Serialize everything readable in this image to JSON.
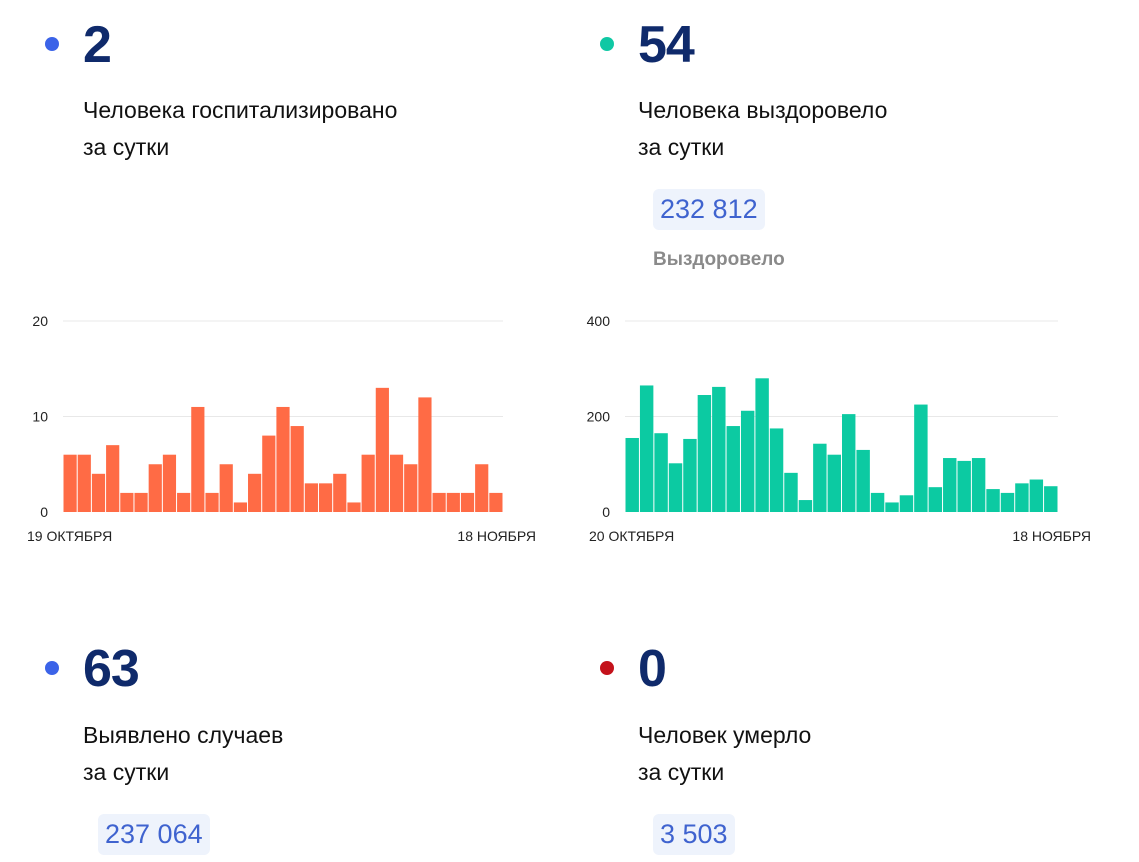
{
  "colors": {
    "blue_dot": "#3b63e8",
    "green_dot": "#0fc8a4",
    "red_dot": "#c4121b",
    "big_number": "#0f2a6b",
    "orange_bar": "#ff6b45",
    "teal_bar": "#0ccaa2",
    "total_text": "#3f63cf"
  },
  "cards": {
    "hospitalized": {
      "value": "2",
      "line1": "Человека госпитализировано",
      "line2": "за сутки"
    },
    "recovered": {
      "value": "54",
      "line1": "Человека выздоровело",
      "line2": "за сутки",
      "total": "232 812",
      "total_label": "Выздоровело"
    },
    "cases": {
      "value": "63",
      "line1": "Выявлено случаев",
      "line2": "за сутки",
      "total": "237 064"
    },
    "deaths": {
      "value": "0",
      "line1": "Человек умерло",
      "line2": "за сутки",
      "total": "3 503"
    }
  },
  "chart_data": [
    {
      "type": "bar",
      "x_start_label": "19 ОКТЯБРЯ",
      "x_end_label": "18 НОЯБРЯ",
      "yticks": [
        0,
        10,
        20
      ],
      "ylim": [
        0,
        20
      ],
      "grid": true,
      "values": [
        6,
        6,
        4,
        7,
        2,
        2,
        5,
        6,
        2,
        11,
        2,
        5,
        1,
        4,
        8,
        11,
        9,
        3,
        3,
        4,
        1,
        6,
        13,
        6,
        5,
        12,
        2,
        2,
        2,
        5,
        2
      ]
    },
    {
      "type": "bar",
      "x_start_label": "20 ОКТЯБРЯ",
      "x_end_label": "18 НОЯБРЯ",
      "yticks": [
        0,
        200,
        400
      ],
      "ylim": [
        0,
        400
      ],
      "grid": true,
      "values": [
        155,
        265,
        165,
        102,
        153,
        245,
        262,
        180,
        212,
        280,
        175,
        82,
        25,
        143,
        120,
        205,
        130,
        40,
        20,
        35,
        225,
        52,
        113,
        107,
        113,
        48,
        40,
        60,
        68,
        54
      ]
    }
  ]
}
